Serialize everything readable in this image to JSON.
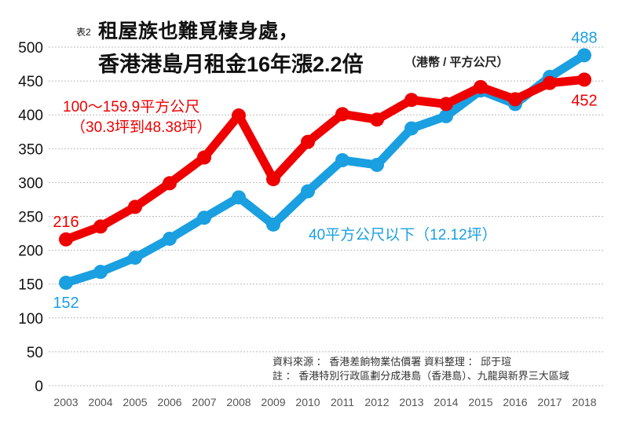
{
  "chart_data": {
    "type": "line",
    "table_label": "表2",
    "title_line1": "租屋族也難覓棲身處，",
    "title_line2": "香港港島月租金16年漲2.2倍",
    "unit": "（港幣 / 平方公尺）",
    "xlabel": "",
    "ylabel": "",
    "ylim": [
      0,
      500
    ],
    "yticks": [
      0,
      50,
      100,
      150,
      200,
      250,
      300,
      350,
      400,
      450,
      500
    ],
    "grid": true,
    "categories": [
      "2003",
      "2004",
      "2005",
      "2006",
      "2007",
      "2008",
      "2009",
      "2010",
      "2011",
      "2012",
      "2013",
      "2014",
      "2015",
      "2016",
      "2017",
      "2018"
    ],
    "series": [
      {
        "name": "100～159.9平方公尺",
        "name_line2": "（30.3坪到48.38坪）",
        "color": "#ee0000",
        "values": [
          216,
          235,
          264,
          299,
          337,
          399,
          305,
          360,
          401,
          393,
          422,
          416,
          441,
          423,
          447,
          452
        ],
        "start_label": "216",
        "end_label": "452"
      },
      {
        "name": "40平方公尺以下（12.12坪）",
        "color": "#1a9fe0",
        "values": [
          152,
          168,
          189,
          217,
          248,
          278,
          238,
          287,
          333,
          326,
          380,
          398,
          436,
          416,
          456,
          488
        ],
        "start_label": "152",
        "end_label": "488"
      }
    ],
    "notes": [
      "資料來源 ： 香港差餉物業估價署  資料整理 ： 邱于瑄",
      "註 ： 香港特別行政區劃分成港島（香港島）、九龍與新界三大區域"
    ]
  }
}
